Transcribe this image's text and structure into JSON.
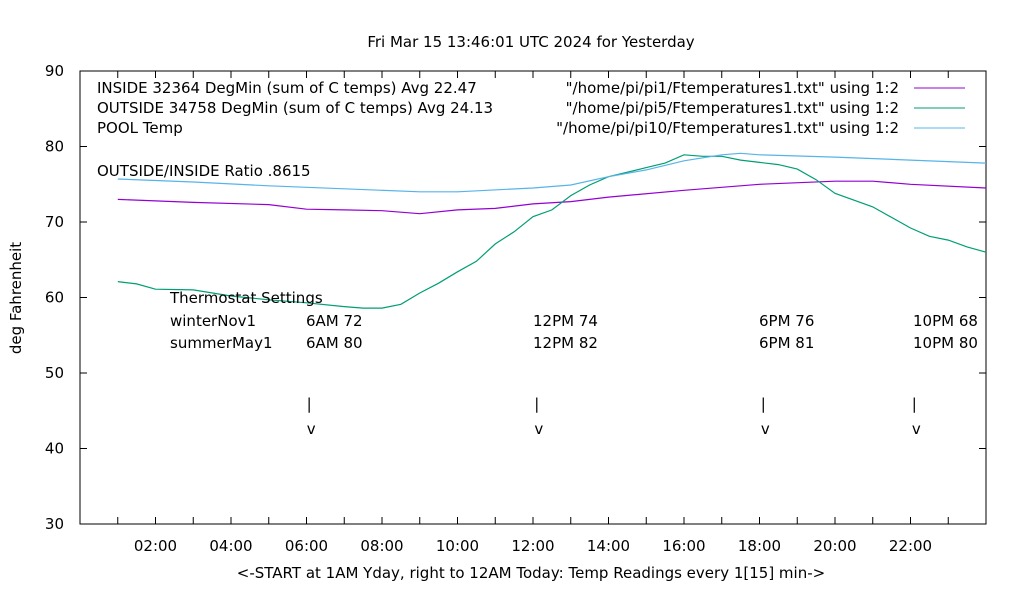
{
  "chart_data": {
    "type": "line",
    "title": "Fri Mar 15 13:46:01 UTC 2024 for Yesterday",
    "xlabel": "<-START at 1AM Yday, right to 12AM Today:  Temp Readings every 1[15] min->",
    "ylabel": "deg Fahrenheit",
    "xlim": [
      0,
      24
    ],
    "ylim": [
      30,
      90
    ],
    "x_ticks": [
      {
        "v": 2,
        "label": "02:00"
      },
      {
        "v": 4,
        "label": "04:00"
      },
      {
        "v": 6,
        "label": "06:00"
      },
      {
        "v": 8,
        "label": "08:00"
      },
      {
        "v": 10,
        "label": "10:00"
      },
      {
        "v": 12,
        "label": "12:00"
      },
      {
        "v": 14,
        "label": "14:00"
      },
      {
        "v": 16,
        "label": "16:00"
      },
      {
        "v": 18,
        "label": "18:00"
      },
      {
        "v": 20,
        "label": "20:00"
      },
      {
        "v": 22,
        "label": "22:00"
      }
    ],
    "y_ticks": [
      30,
      40,
      50,
      60,
      70,
      80,
      90
    ],
    "grid": false,
    "legend_placement": "top-right",
    "legend_left": [
      "INSIDE 32364 DegMin (sum of C temps) Avg 22.47",
      "OUTSIDE 34758 DegMin (sum of C temps) Avg 24.13",
      "POOL Temp"
    ],
    "series": [
      {
        "name": "\"/home/pi/pi1/Ftemperatures1.txt\" using 1:2",
        "color": "#9400d3",
        "x": [
          1,
          3,
          5,
          6,
          7,
          8,
          9,
          10,
          11,
          12,
          13,
          14,
          16,
          18,
          20,
          21,
          22,
          24
        ],
        "y": [
          73.0,
          72.6,
          72.3,
          71.7,
          71.6,
          71.5,
          71.1,
          71.6,
          71.8,
          72.4,
          72.7,
          73.3,
          74.2,
          75.0,
          75.4,
          75.4,
          75.0,
          74.5
        ]
      },
      {
        "name": "\"/home/pi/pi5/Ftemperatures1.txt\" using 1:2",
        "color": "#009e73",
        "x": [
          1,
          1.5,
          2,
          3,
          4,
          5,
          6,
          7,
          7.5,
          8,
          8.5,
          9,
          9.5,
          10,
          10.5,
          11,
          11.5,
          12,
          12.5,
          13,
          13.5,
          14,
          15,
          15.5,
          16,
          16.5,
          17,
          17.5,
          18,
          18.5,
          19,
          19.5,
          20,
          21,
          22,
          22.5,
          23,
          23.5,
          24
        ],
        "y": [
          62.1,
          61.8,
          61.1,
          61.0,
          60.2,
          59.7,
          59.3,
          58.8,
          58.6,
          58.6,
          59.1,
          60.6,
          61.9,
          63.4,
          64.8,
          67.1,
          68.7,
          70.7,
          71.6,
          73.5,
          74.9,
          76.0,
          77.2,
          77.8,
          78.9,
          78.7,
          78.7,
          78.2,
          77.9,
          77.6,
          77.0,
          75.6,
          73.8,
          72.0,
          69.2,
          68.1,
          67.6,
          66.7,
          66.0
        ]
      },
      {
        "name": "\"/home/pi/pi10/Ftemperatures1.txt\" using 1:2",
        "color": "#56b4e9",
        "x": [
          1,
          3,
          5,
          7,
          9,
          10,
          12,
          13,
          14,
          15,
          16,
          17,
          17.5,
          18,
          20,
          22,
          24
        ],
        "y": [
          75.7,
          75.3,
          74.8,
          74.4,
          74.0,
          74.0,
          74.5,
          74.9,
          76.0,
          76.9,
          78.1,
          78.9,
          79.1,
          78.9,
          78.6,
          78.2,
          77.8
        ]
      }
    ],
    "annotations": {
      "ratio": "OUTSIDE/INSIDE Ratio .8615",
      "thermostat_title": "Thermostat Settings",
      "rows": [
        {
          "label": "winterNov1",
          "values": [
            "6AM 72",
            "12PM 74",
            "6PM 76",
            "10PM 68"
          ]
        },
        {
          "label": "summerMay1",
          "values": [
            "6AM 80",
            "12PM 82",
            "6PM 81",
            "10PM 80"
          ]
        }
      ],
      "column_hours": [
        6,
        12,
        18,
        22
      ],
      "arrow_hours": [
        6.07,
        12.1,
        18.1,
        22.1
      ],
      "arrow_stem": "|",
      "arrow_head": "v"
    }
  }
}
